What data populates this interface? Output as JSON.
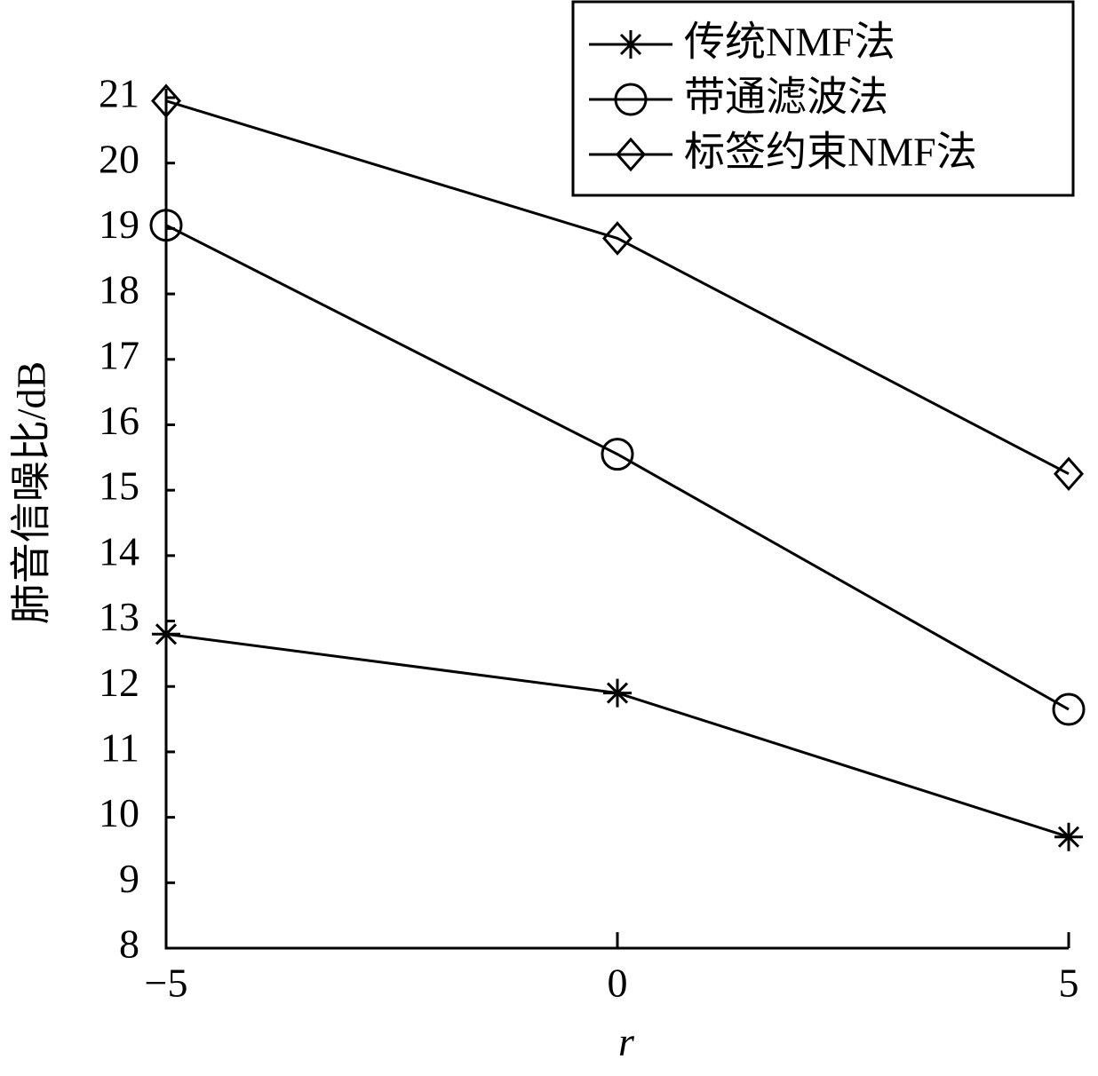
{
  "chart_data": {
    "type": "line",
    "x_label": "r",
    "y_label": "肺音信噪比/dB",
    "x": [
      -5,
      0,
      5
    ],
    "series": [
      {
        "name": "传统NMF法",
        "color": "#000000",
        "marker": "star",
        "values": [
          12.8,
          11.9,
          9.7
        ]
      },
      {
        "name": "带通滤波法",
        "color": "#000000",
        "marker": "circle",
        "values": [
          19.05,
          15.55,
          11.65
        ]
      },
      {
        "name": "标签约束NMF法",
        "color": "#000000",
        "marker": "diamond",
        "values": [
          20.95,
          18.85,
          15.25
        ]
      }
    ],
    "xlim": [
      -5,
      5
    ],
    "xticks": [
      {
        "value": -5,
        "label": "−5"
      },
      0,
      5
    ],
    "ylim": [
      8,
      21
    ],
    "yticks": [
      8,
      9,
      10,
      11,
      12,
      13,
      14,
      15,
      16,
      17,
      18,
      19,
      20,
      21
    ],
    "grid": false,
    "legend": "upper right"
  }
}
